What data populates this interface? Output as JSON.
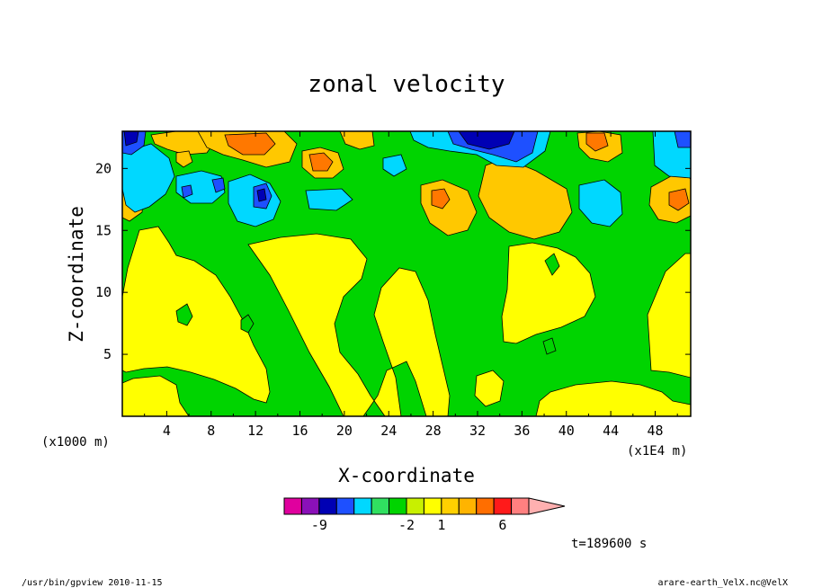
{
  "chart_data": {
    "type": "heatmap",
    "title": "zonal velocity",
    "xlabel": "X-coordinate",
    "ylabel": "Z-coordinate",
    "x_unit_label": "(x1E4 m)",
    "y_unit_label": "(x1000 m)",
    "xlim": [
      0,
      51.2
    ],
    "ylim": [
      0,
      23
    ],
    "x_ticks": [
      "4",
      "8",
      "12",
      "16",
      "20",
      "24",
      "28",
      "32",
      "36",
      "40",
      "44",
      "48"
    ],
    "y_ticks": [
      "5",
      "10",
      "15",
      "20"
    ],
    "time_label": "t=189600 s",
    "colorbar": {
      "colors": [
        "#e0009e",
        "#8a10b8",
        "#0000b4",
        "#1e50ff",
        "#00d8ff",
        "#30e060",
        "#00d400",
        "#c8f000",
        "#ffff00",
        "#ffd000",
        "#ffb400",
        "#ff6e00",
        "#ff1a1a",
        "#ff8080",
        "#ffb0b0"
      ],
      "tick_labels": [
        "-9",
        "-2",
        "1",
        "6"
      ]
    },
    "field_colors": {
      "strong_negative": "#0000b4",
      "negative": "#1e50ff",
      "weak_negative": "#00d8ff",
      "near_zero": "#00d400",
      "weak_positive": "#ffff00",
      "positive": "#ffc800",
      "strong_positive": "#ff7800"
    }
  },
  "footer": {
    "left": "/usr/bin/gpview   2010-11-15",
    "right": "arare-earth_VelX.nc@VelX"
  }
}
